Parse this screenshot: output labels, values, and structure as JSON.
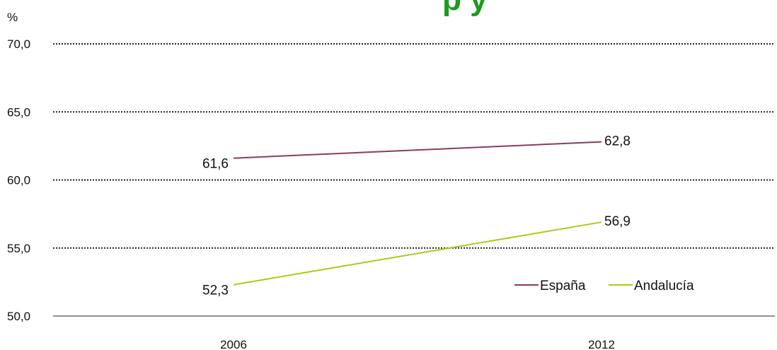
{
  "chart_data": {
    "type": "line",
    "title_fragment": "p        y",
    "ylabel": "%",
    "ylim": [
      50,
      70
    ],
    "y_ticks": [
      "70,0",
      "65,0",
      "60,0",
      "55,0",
      "50,0"
    ],
    "categories": [
      "2006",
      "2012"
    ],
    "series": [
      {
        "name": "España",
        "values": [
          61.6,
          62.8
        ],
        "labels": [
          "61,6",
          "62,8"
        ],
        "color": "#8b3a62"
      },
      {
        "name": "Andalucía",
        "values": [
          52.3,
          56.9
        ],
        "labels": [
          "52,3",
          "56,9"
        ],
        "color": "#a8cc14"
      }
    ],
    "grid": true,
    "legend_position": "bottom-right",
    "title_color": "#1f9a1f"
  }
}
